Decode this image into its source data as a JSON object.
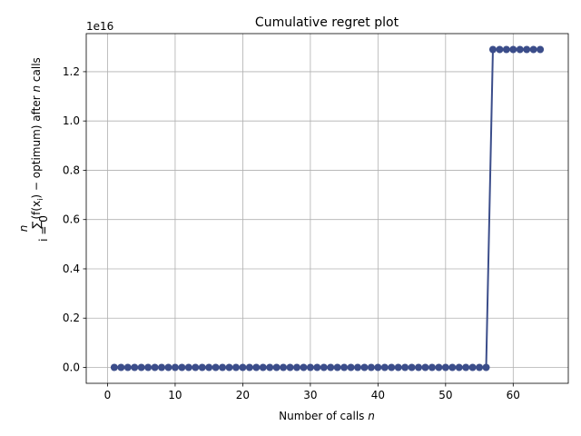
{
  "chart_data": {
    "type": "line",
    "title": "Cumulative regret plot",
    "xlabel": "Number of calls",
    "xlabel_var": "n",
    "ylabel_parts": {
      "sum_sign": "∑",
      "sum_top": "n",
      "sum_bottom": "i = 0",
      "body": "(f(x",
      "body_sub": "i",
      "body_tail": ") − optimum) after",
      "var": "n",
      "tail": "calls"
    },
    "y_offset_label": "1e16",
    "xlim": [
      -3.15,
      68.15
    ],
    "ylim": [
      -0.0645,
      1.3545
    ],
    "x_ticks": [
      0,
      10,
      20,
      30,
      40,
      50,
      60
    ],
    "y_ticks": [
      0.0,
      0.2,
      0.4,
      0.6,
      0.8,
      1.0,
      1.2
    ],
    "y_tick_labels": [
      "0.0",
      "0.2",
      "0.4",
      "0.6",
      "0.8",
      "1.0",
      "1.2"
    ],
    "grid": true,
    "color": "#3b4d8a",
    "series": [
      {
        "x": [
          1,
          2,
          3,
          4,
          5,
          6,
          7,
          8,
          9,
          10,
          11,
          12,
          13,
          14,
          15,
          16,
          17,
          18,
          19,
          20,
          21,
          22,
          23,
          24,
          25,
          26,
          27,
          28,
          29,
          30,
          31,
          32,
          33,
          34,
          35,
          36,
          37,
          38,
          39,
          40,
          41,
          42,
          43,
          44,
          45,
          46,
          47,
          48,
          49,
          50,
          51,
          52,
          53,
          54,
          55,
          56,
          57,
          58,
          59,
          60,
          61,
          62,
          63,
          64
        ],
        "y": [
          0,
          0,
          0,
          0,
          0,
          0,
          0,
          0,
          0,
          0,
          0,
          0,
          0,
          0,
          0,
          0,
          0,
          0,
          0,
          0,
          0,
          0,
          0,
          0,
          0,
          0,
          0,
          0,
          0,
          0,
          0,
          0,
          0,
          0,
          0,
          0,
          0,
          0,
          0,
          0,
          0,
          0,
          0,
          0,
          0,
          0,
          0,
          0,
          0,
          0,
          0,
          0,
          0,
          0,
          0,
          0,
          1.29,
          1.29,
          1.29,
          1.29,
          1.29,
          1.29,
          1.29,
          1.29
        ]
      }
    ]
  }
}
